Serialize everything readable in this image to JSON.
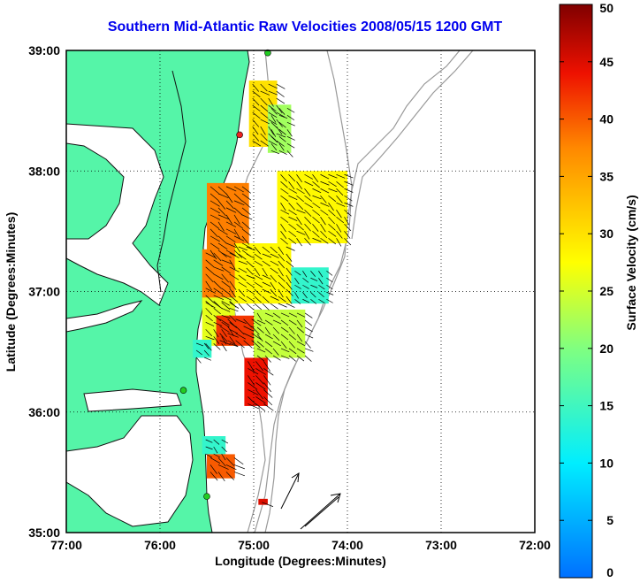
{
  "title": "Southern Mid-Atlantic Raw Velocities 2008/05/15 1200 GMT",
  "x_axis": {
    "label": "Longitude (Degrees:Minutes)",
    "ticks": [
      "77:00",
      "76:00",
      "75:00",
      "74:00",
      "73:00",
      "72:00"
    ],
    "range": [
      -77,
      -72
    ]
  },
  "y_axis": {
    "label": "Latitude (Degrees:Minutes)",
    "ticks": [
      "35:00",
      "36:00",
      "37:00",
      "38:00",
      "39:00"
    ],
    "range": [
      35,
      39
    ]
  },
  "colorbar": {
    "label": "Surface Velocity (cm/s)",
    "ticks": [
      "0",
      "5",
      "10",
      "15",
      "20",
      "25",
      "30",
      "35",
      "40",
      "45",
      "50"
    ],
    "range": [
      0,
      50
    ]
  },
  "colors": {
    "land": "#55f5a8",
    "title": "#0000ee",
    "bathymetry": "#999999",
    "stations": "#22cc22",
    "active_station": "#ee2222"
  },
  "grid": "dotted",
  "chart_data": {
    "type": "heatmap",
    "title": "Southern Mid-Atlantic Raw Velocities 2008/05/15 1200 GMT",
    "xlabel": "Longitude (Degrees:Minutes)",
    "ylabel": "Latitude (Degrees:Minutes)",
    "xlim": [
      -77,
      -72
    ],
    "ylim": [
      35,
      39
    ],
    "colorbar_range": [
      0,
      50
    ],
    "regions": [
      {
        "lon": [
          -75.5,
          -75.05
        ],
        "lat": [
          37.3,
          37.9
        ],
        "speed": 38
      },
      {
        "lon": [
          -75.05,
          -74.75
        ],
        "lat": [
          38.2,
          38.75
        ],
        "speed": 30
      },
      {
        "lon": [
          -74.85,
          -74.6
        ],
        "lat": [
          38.15,
          38.55
        ],
        "speed": 22
      },
      {
        "lon": [
          -74.75,
          -74.0
        ],
        "lat": [
          37.4,
          38.0
        ],
        "speed": 28
      },
      {
        "lon": [
          -75.55,
          -75.2
        ],
        "lat": [
          36.9,
          37.35
        ],
        "speed": 38
      },
      {
        "lon": [
          -75.2,
          -74.6
        ],
        "lat": [
          36.9,
          37.4
        ],
        "speed": 28
      },
      {
        "lon": [
          -74.6,
          -74.2
        ],
        "lat": [
          36.9,
          37.2
        ],
        "speed": 14
      },
      {
        "lon": [
          -75.55,
          -75.2
        ],
        "lat": [
          36.55,
          36.95
        ],
        "speed": 26
      },
      {
        "lon": [
          -75.4,
          -75.0
        ],
        "lat": [
          36.55,
          36.8
        ],
        "speed": 42
      },
      {
        "lon": [
          -75.0,
          -74.45
        ],
        "lat": [
          36.45,
          36.85
        ],
        "speed": 24
      },
      {
        "lon": [
          -75.65,
          -75.45
        ],
        "lat": [
          36.45,
          36.6
        ],
        "speed": 14
      },
      {
        "lon": [
          -75.1,
          -74.85
        ],
        "lat": [
          36.05,
          36.45
        ],
        "speed": 44
      },
      {
        "lon": [
          -75.55,
          -75.3
        ],
        "lat": [
          35.65,
          35.8
        ],
        "speed": 14
      },
      {
        "lon": [
          -75.5,
          -75.2
        ],
        "lat": [
          35.45,
          35.65
        ],
        "speed": 40
      },
      {
        "lon": [
          -74.95,
          -74.85
        ],
        "lat": [
          35.23,
          35.28
        ],
        "speed": 45
      }
    ],
    "stations": [
      {
        "lon": -74.85,
        "lat": 38.98,
        "active": false
      },
      {
        "lon": -75.15,
        "lat": 38.3,
        "active": true
      },
      {
        "lon": -75.75,
        "lat": 36.18,
        "active": false
      },
      {
        "lon": -75.5,
        "lat": 35.3,
        "active": false
      }
    ]
  }
}
